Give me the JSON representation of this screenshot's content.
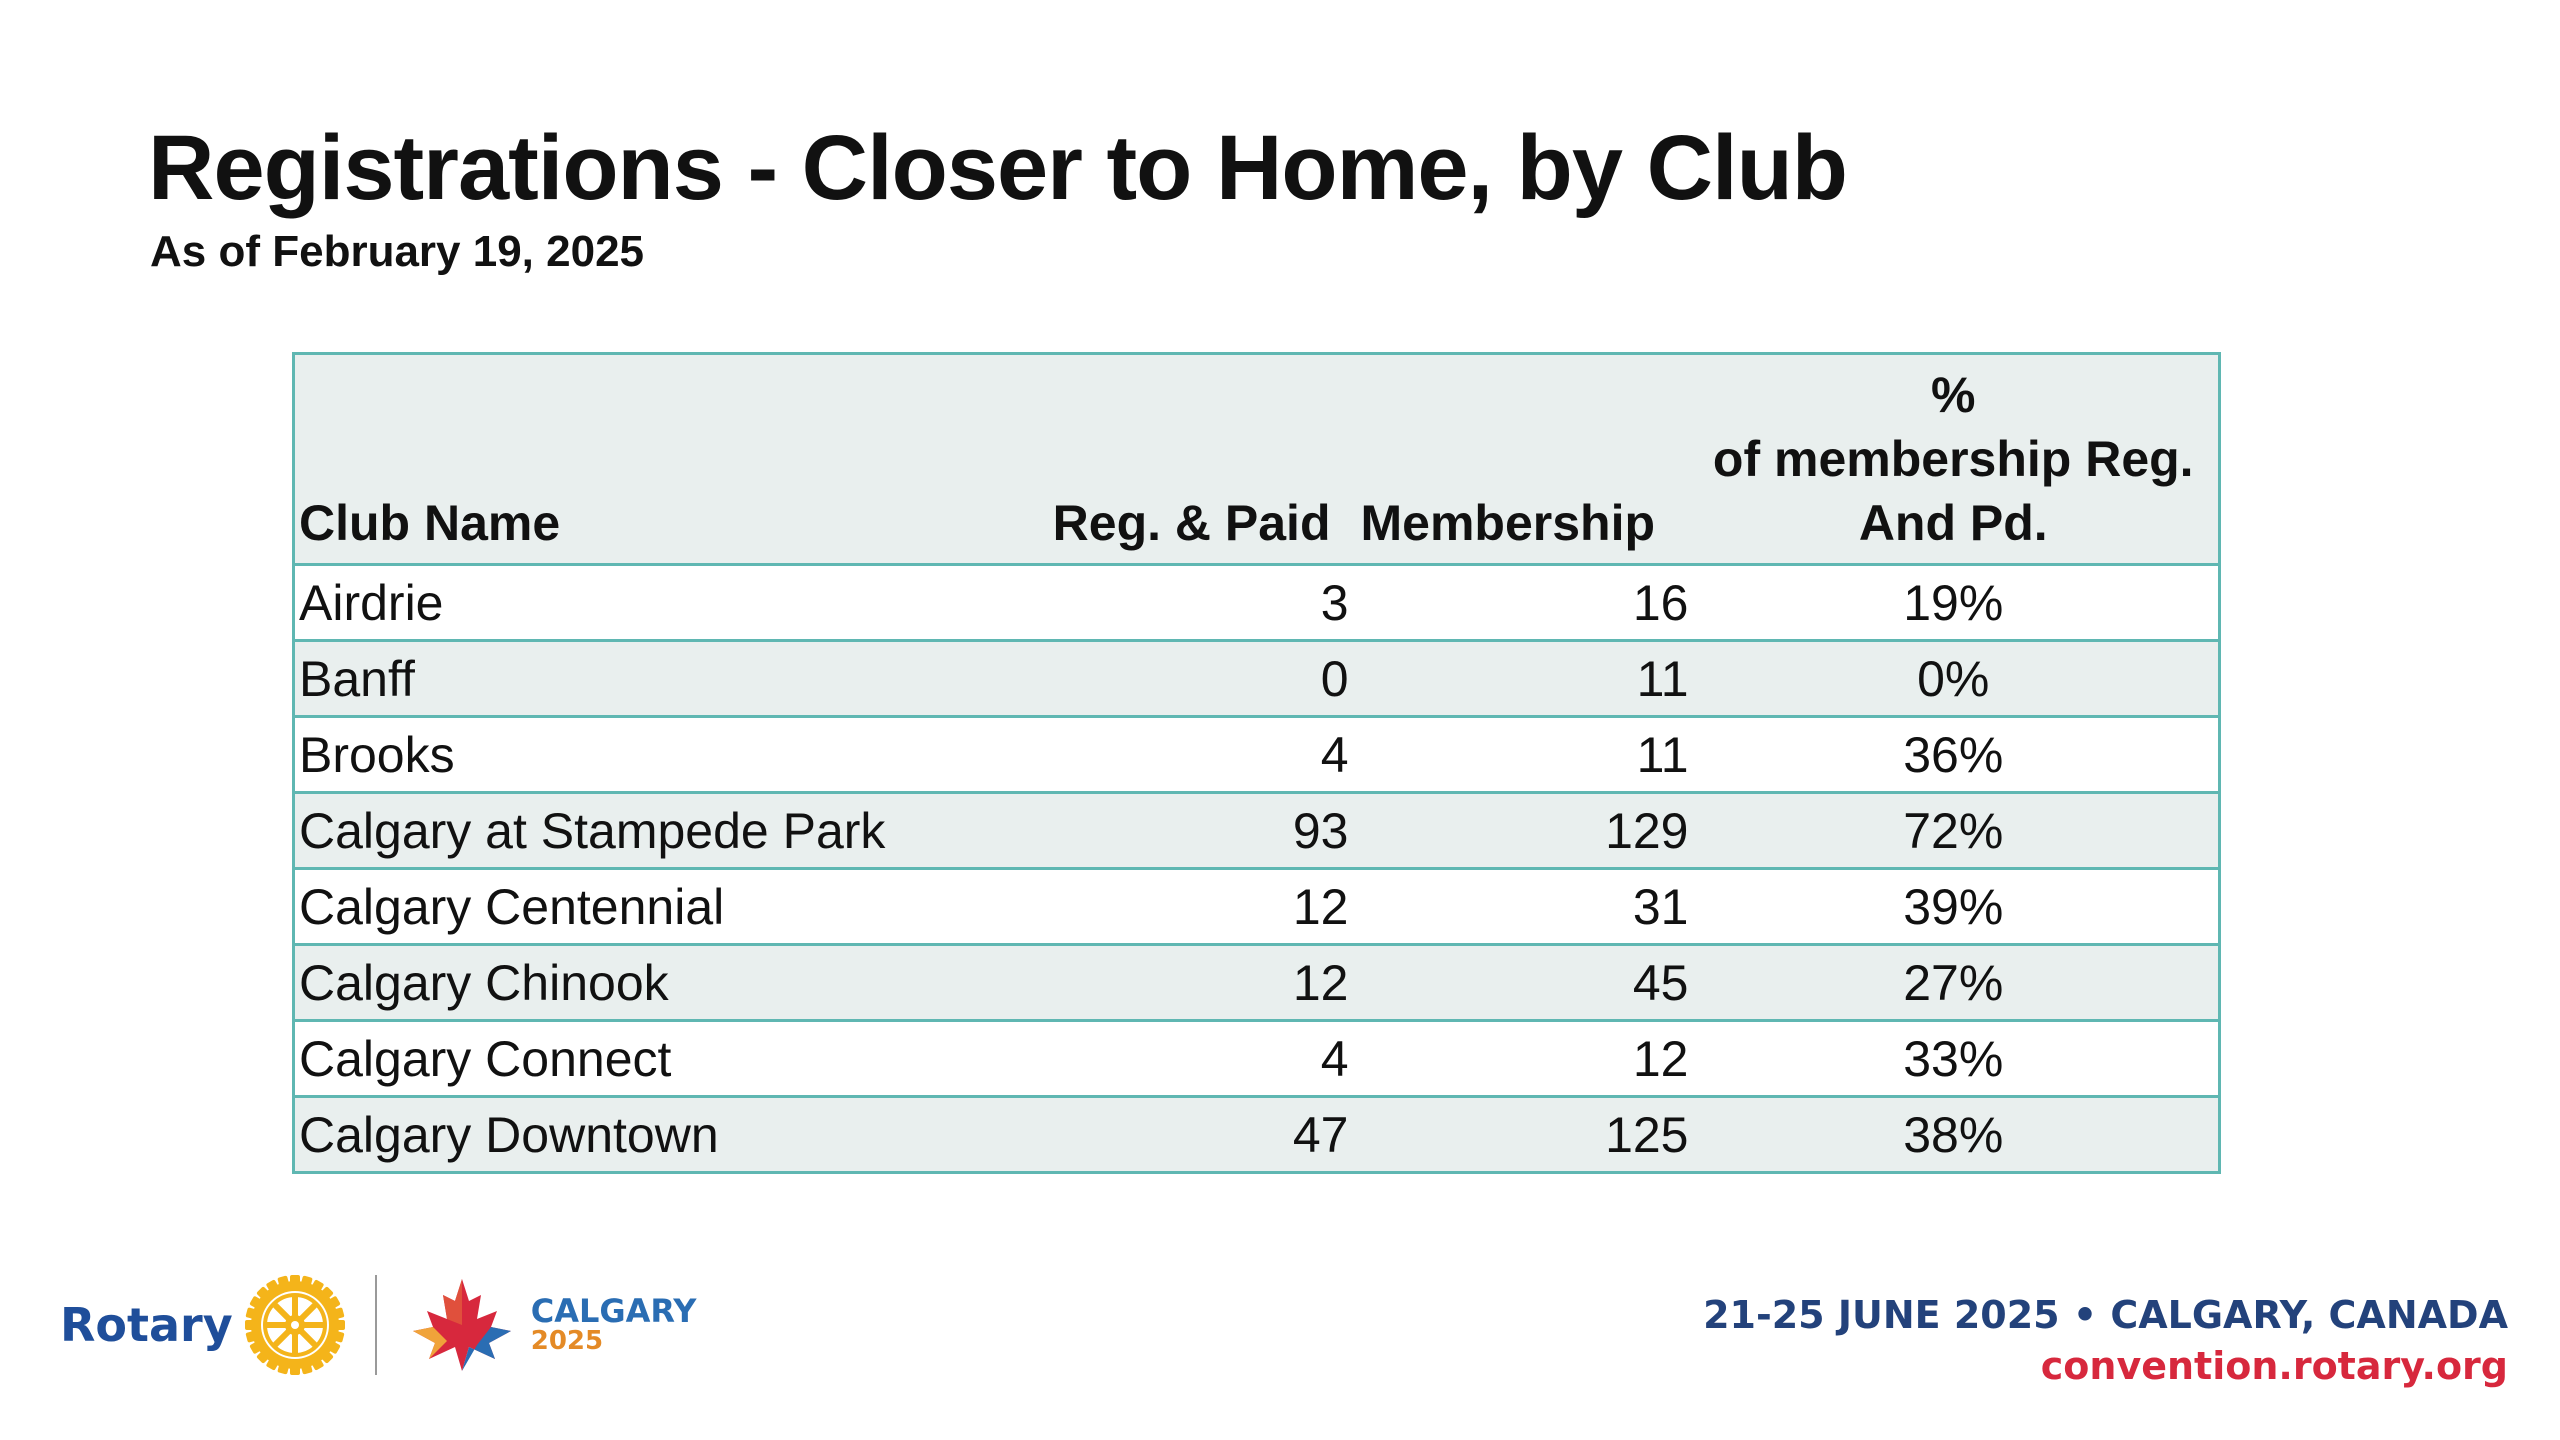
{
  "title": "Registrations - Closer to Home, by Club",
  "subtitle": "As of February 19, 2025",
  "table": {
    "headers": {
      "club": "Club Name",
      "reg": "Reg. & Paid",
      "membership": "Membership",
      "pct_line1": "%",
      "pct_line2": "of membership Reg.",
      "pct_line3": "And Pd."
    },
    "rows": [
      {
        "club": "Airdrie",
        "reg": "3",
        "membership": "16",
        "pct": "19%"
      },
      {
        "club": "Banff",
        "reg": "0",
        "membership": "11",
        "pct": "0%"
      },
      {
        "club": "Brooks",
        "reg": "4",
        "membership": "11",
        "pct": "36%"
      },
      {
        "club": "Calgary at Stampede Park",
        "reg": "93",
        "membership": "129",
        "pct": "72%"
      },
      {
        "club": "Calgary Centennial",
        "reg": "12",
        "membership": "31",
        "pct": "39%"
      },
      {
        "club": "Calgary Chinook",
        "reg": "12",
        "membership": "45",
        "pct": "27%"
      },
      {
        "club": "Calgary Connect",
        "reg": "4",
        "membership": "12",
        "pct": "33%"
      },
      {
        "club": "Calgary Downtown",
        "reg": "47",
        "membership": "125",
        "pct": "38%"
      }
    ]
  },
  "footer": {
    "rotary_wordmark": "Rotary",
    "calgary_city": "CALGARY",
    "calgary_year": "2025",
    "event_dates": "21-25 JUNE 2025 • CALGARY, CANADA",
    "url": "convention.rotary.org"
  },
  "colors": {
    "table_border": "#5fb7b2",
    "row_shade": "#e9efee",
    "rotary_blue": "#1f4e9a",
    "rotary_gold": "#f4b41a",
    "url_red": "#d7283d"
  },
  "icons": [
    "rotary-wheel-icon",
    "calgary-maple-leaf-icon"
  ]
}
